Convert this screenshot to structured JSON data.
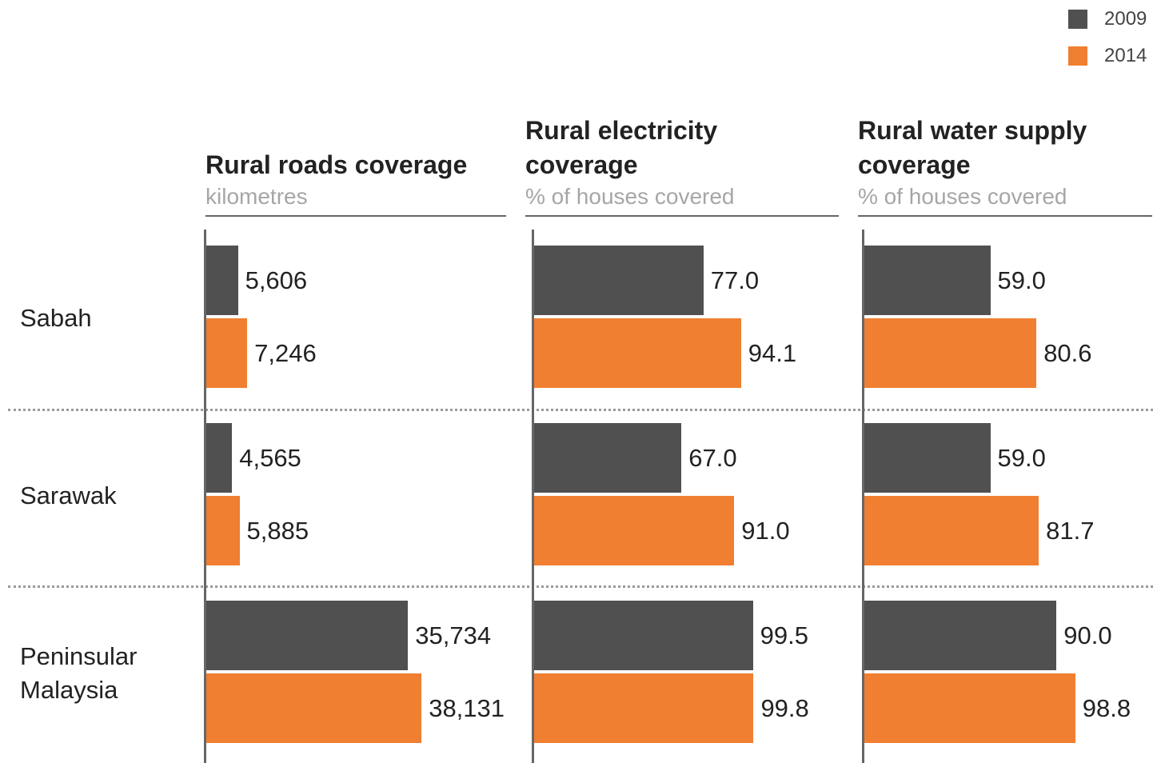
{
  "chart_data": {
    "type": "bar",
    "orientation": "horizontal",
    "legend": {
      "placement": "top-right",
      "entries": [
        {
          "name": "2009",
          "color": "#505050"
        },
        {
          "name": "2014",
          "color": "#f07f32"
        }
      ]
    },
    "categories": [
      "Sabah",
      "Sarawak",
      "Peninsular\nMalaysia"
    ],
    "panels": [
      {
        "title": "Rural roads coverage",
        "unit": "kilometres",
        "xlim": [
          0,
          70000
        ],
        "series": [
          {
            "name": "2009",
            "values": [
              5606,
              4565,
              35734
            ],
            "labels": [
              "5,606",
              "4,565",
              "35,734"
            ]
          },
          {
            "name": "2014",
            "values": [
              7246,
              5885,
              38131
            ],
            "labels": [
              "7,246",
              "5,885",
              "38,131"
            ]
          }
        ]
      },
      {
        "title": "Rural electricity\ncoverage",
        "unit": "% of houses covered",
        "xlim": [
          0,
          140
        ],
        "series": [
          {
            "name": "2009",
            "values": [
              77.0,
              67.0,
              99.5
            ],
            "labels": [
              "77.0",
              "67.0",
              "99.5"
            ]
          },
          {
            "name": "2014",
            "values": [
              94.1,
              91.0,
              99.8
            ],
            "labels": [
              "94.1",
              "91.0",
              "99.8"
            ]
          }
        ]
      },
      {
        "title": "Rural water supply\ncoverage",
        "unit": "% of houses covered",
        "xlim": [
          0,
          140
        ],
        "series": [
          {
            "name": "2009",
            "values": [
              59.0,
              59.0,
              90.0
            ],
            "labels": [
              "59.0",
              "59.0",
              "90.0"
            ]
          },
          {
            "name": "2014",
            "values": [
              80.6,
              81.7,
              98.8
            ],
            "labels": [
              "80.6",
              "81.7",
              "98.8"
            ]
          }
        ]
      }
    ],
    "grid": false
  }
}
